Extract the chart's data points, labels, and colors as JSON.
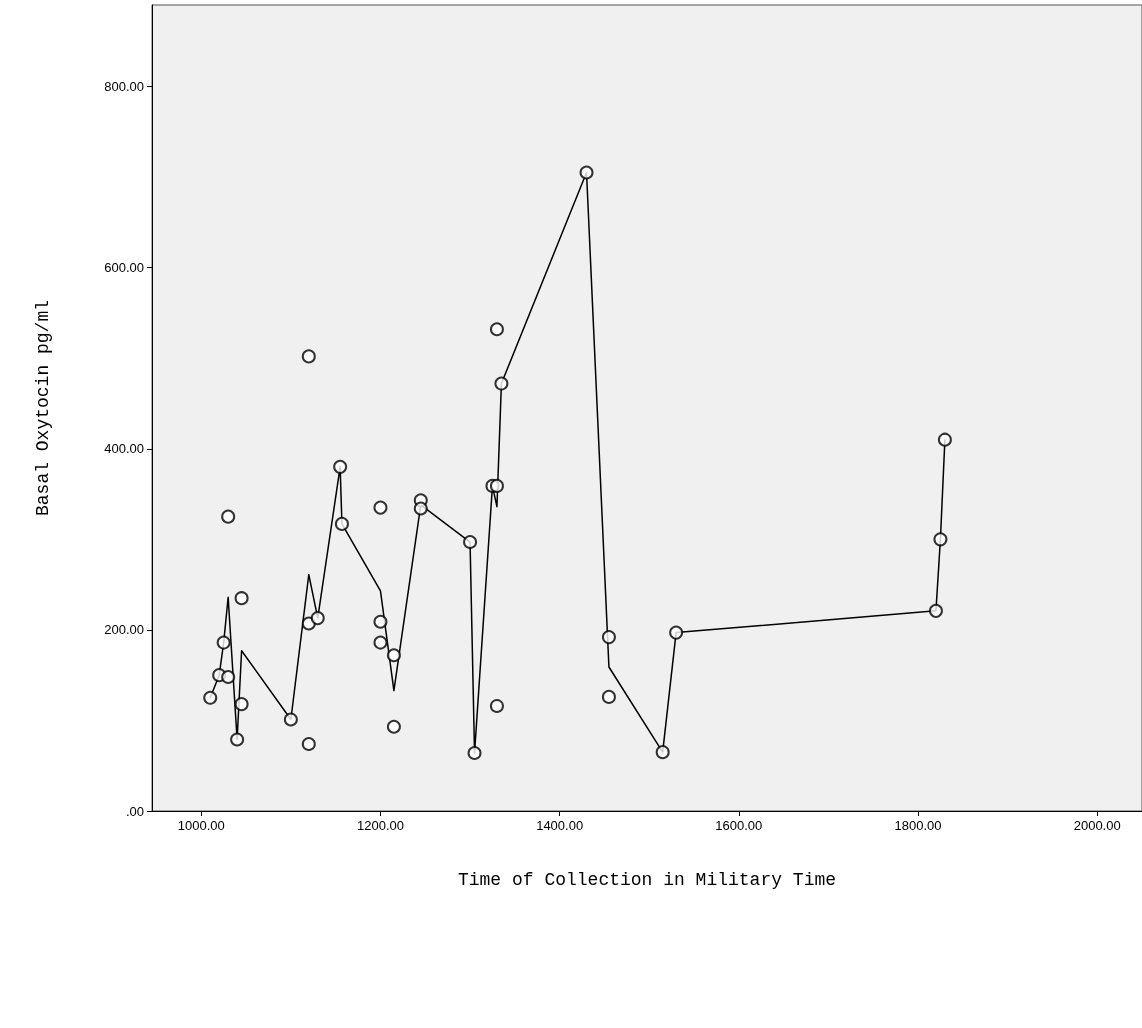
{
  "chart_data": {
    "type": "scatter",
    "xlabel": "Time of Collection in Military Time",
    "ylabel": "Basal Oxytocin pg/ml",
    "xlim": [
      945,
      2050
    ],
    "ylim": [
      0,
      890
    ],
    "xticks": [
      {
        "value": 1000,
        "label": "1000.00"
      },
      {
        "value": 1200,
        "label": "1200.00"
      },
      {
        "value": 1400,
        "label": "1400.00"
      },
      {
        "value": 1600,
        "label": "1600.00"
      },
      {
        "value": 1800,
        "label": "1800.00"
      },
      {
        "value": 2000,
        "label": "2000.00"
      }
    ],
    "yticks": [
      {
        "value": 0,
        "label": ".00"
      },
      {
        "value": 200,
        "label": "200.00"
      },
      {
        "value": 400,
        "label": "400.00"
      },
      {
        "value": 600,
        "label": "600.00"
      },
      {
        "value": 800,
        "label": "800.00"
      }
    ],
    "grid": false,
    "series": [
      {
        "marker": "circle",
        "color": "#000000",
        "x": [
          1010,
          1020,
          1030,
          1025,
          1030,
          1045,
          1045,
          1040,
          1100,
          1120,
          1120,
          1120,
          1130,
          1155,
          1157,
          1200,
          1200,
          1200,
          1215,
          1215,
          1245,
          1245,
          1300,
          1305,
          1325,
          1330,
          1330,
          1330,
          1335,
          1430,
          1455,
          1455,
          1515,
          1530,
          1820,
          1825,
          1830
        ],
        "values": [
          125,
          150,
          148,
          186,
          325,
          235,
          118,
          79,
          101,
          502,
          207,
          74,
          213,
          380,
          317,
          335,
          209,
          186,
          172,
          93,
          343,
          334,
          297,
          64,
          359,
          359,
          116,
          532,
          472,
          705,
          192,
          126,
          65,
          197,
          221,
          300,
          410
        ]
      },
      {
        "type": "line",
        "marker": "none",
        "line_style": "solid",
        "color": "#000000",
        "x": [
          1010,
          1020,
          1025,
          1030,
          1040,
          1045,
          1100,
          1120,
          1130,
          1155,
          1157,
          1200,
          1215,
          1245,
          1300,
          1305,
          1325,
          1330,
          1335,
          1430,
          1455,
          1515,
          1530,
          1820,
          1825,
          1830
        ],
        "values": [
          125,
          150,
          186,
          236,
          79,
          177,
          101,
          261,
          213,
          380,
          317,
          243,
          133,
          338,
          297,
          64,
          359,
          336,
          472,
          705,
          159,
          65,
          197,
          221,
          300,
          410
        ]
      }
    ]
  }
}
